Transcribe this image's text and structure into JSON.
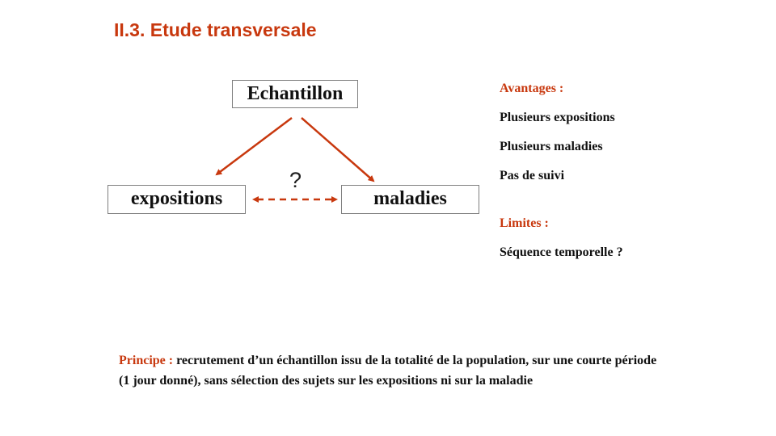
{
  "title": "II.3. Etude transversale",
  "diagram": {
    "top_box": "Echantillon",
    "left_box": "expositions",
    "right_box": "maladies",
    "link_label": "?"
  },
  "avantages": {
    "heading": "Avantages :",
    "items": [
      "Plusieurs  expositions",
      "Plusieurs  maladies",
      "Pas de suivi"
    ]
  },
  "limites": {
    "heading": "Limites :",
    "items": [
      "Séquence  temporelle  ?"
    ]
  },
  "principe": {
    "label": "Principe  :",
    "text": " recrutement  d’un  échantillon  issu de la totalité de la population,  sur une courte période (1 jour donné),  sans sélection des sujets sur les expositions ni sur la maladie"
  },
  "colors": {
    "accent": "#c8380e",
    "text": "#111111",
    "box_border": "#7f7f7f"
  }
}
